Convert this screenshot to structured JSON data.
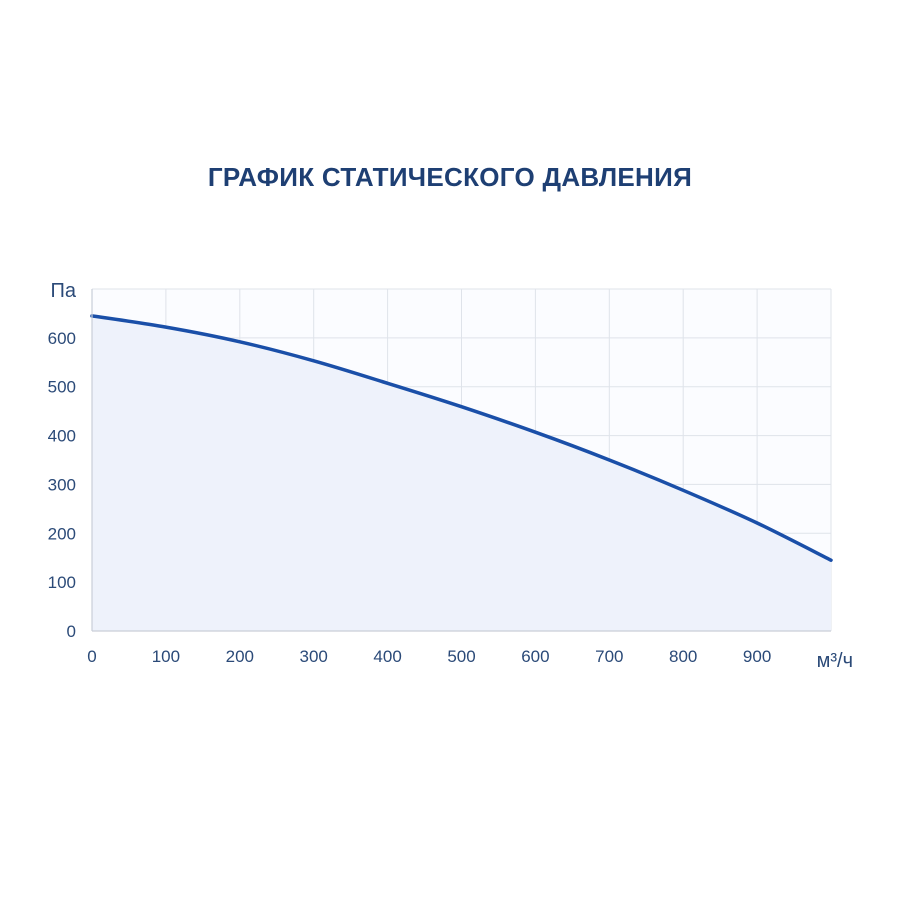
{
  "title": "ГРАФИК СТАТИЧЕСКОГО ДАВЛЕНИЯ",
  "chart_data": {
    "type": "line",
    "title": "ГРАФИК СТАТИЧЕСКОГО ДАВЛЕНИЯ",
    "xlabel": "м³/ч",
    "ylabel": "Па",
    "xlim": [
      0,
      1000
    ],
    "ylim": [
      0,
      700
    ],
    "x_ticks": [
      0,
      100,
      200,
      300,
      400,
      500,
      600,
      700,
      800,
      900
    ],
    "y_ticks": [
      0,
      100,
      200,
      300,
      400,
      500,
      600
    ],
    "grid": true,
    "series": [
      {
        "color": "#1a4fa8",
        "fill": "#eef2fb",
        "points": [
          [
            0,
            645
          ],
          [
            100,
            622
          ],
          [
            200,
            592
          ],
          [
            300,
            553
          ],
          [
            400,
            507
          ],
          [
            500,
            459
          ],
          [
            600,
            407
          ],
          [
            700,
            350
          ],
          [
            800,
            288
          ],
          [
            900,
            221
          ],
          [
            1000,
            145
          ]
        ]
      }
    ]
  }
}
